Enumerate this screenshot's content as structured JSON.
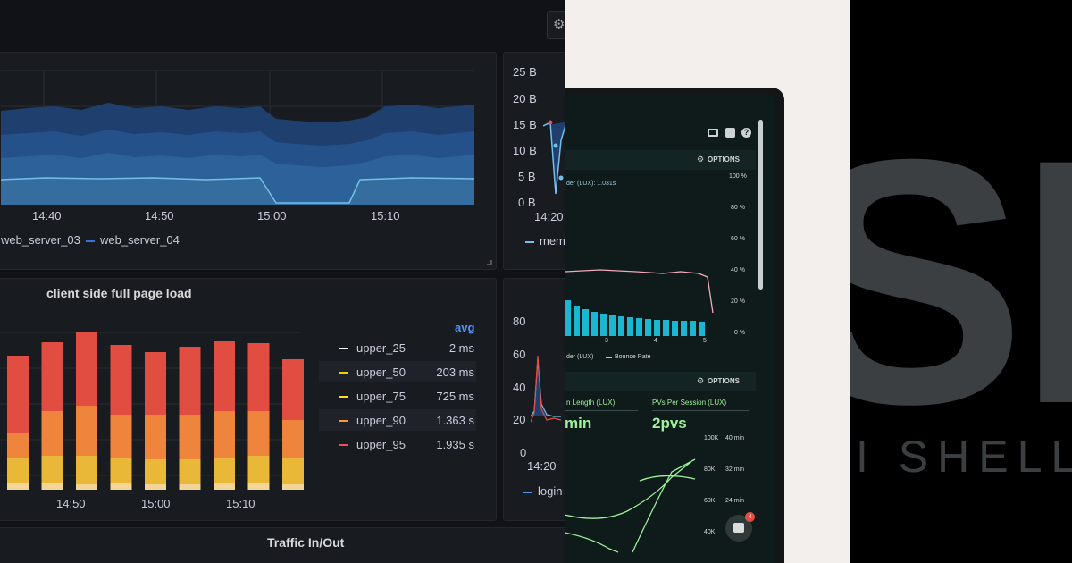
{
  "grafana": {
    "top_panel": {
      "time_labels": [
        "14:40",
        "14:50",
        "15:00",
        "15:10"
      ],
      "legend": [
        "web_server_03",
        "web_server_04"
      ]
    },
    "mem_panel": {
      "y_labels": [
        "25 B",
        "20 B",
        "15 B",
        "10 B",
        "5 B",
        "0 B"
      ],
      "time_label": "14:20",
      "legend": "mem"
    },
    "page_load_panel": {
      "title": "client side full page load",
      "time_labels": [
        "14:50",
        "15:00",
        "15:10"
      ],
      "legend_header": "avg",
      "legend": [
        {
          "name": "upper_25",
          "value": "2 ms",
          "color": "#ffffff"
        },
        {
          "name": "upper_50",
          "value": "203 ms",
          "color": "#f2cc0c"
        },
        {
          "name": "upper_75",
          "value": "725 ms",
          "color": "#fade2a"
        },
        {
          "name": "upper_90",
          "value": "1.363 s",
          "color": "#ff9830"
        },
        {
          "name": "upper_95",
          "value": "1.935 s",
          "color": "#f2495c"
        }
      ]
    },
    "login_panel": {
      "y_labels": [
        "80",
        "60",
        "40",
        "20",
        "0"
      ],
      "time_label": "14:20",
      "legend": "login"
    },
    "bottom_panel": {
      "title": "Traffic In/Out"
    },
    "colors": {
      "bar_red": "#e24d42",
      "bar_orange": "#ef843c",
      "bar_yellow": "#eab839",
      "bar_pale": "#f4d598",
      "series_blue": "#5794f2"
    }
  },
  "laptop": {
    "options_label": "OPTIONS",
    "options_label_2": "OPTIONS",
    "chart_series_label": "der (LUX): 1.031s",
    "pct_labels": [
      "100 %",
      "80 %",
      "60 %",
      "40 %",
      "20 %",
      "0 %"
    ],
    "bar_x_labels": [
      "3",
      "4",
      "5"
    ],
    "legend_1": "der (LUX)",
    "legend_2": "Bounce Rate",
    "kpi_1_title": "n Length (LUX)",
    "kpi_2_title": "PVs Per Session (LUX)",
    "kpi_1_value": "min",
    "kpi_2_value": "2pvs",
    "axis_left": [
      "100K",
      "80K",
      "60K",
      "40K"
    ],
    "axis_right": [
      "40 min",
      "32 min",
      "24 min"
    ],
    "badge_count": "4",
    "colors": {
      "bar": "#1bb6d2",
      "bounce": "#f3a9b8",
      "kpi": "#9df29a"
    }
  },
  "shell": {
    "big_letters": "SH",
    "word": "I SHELL"
  }
}
